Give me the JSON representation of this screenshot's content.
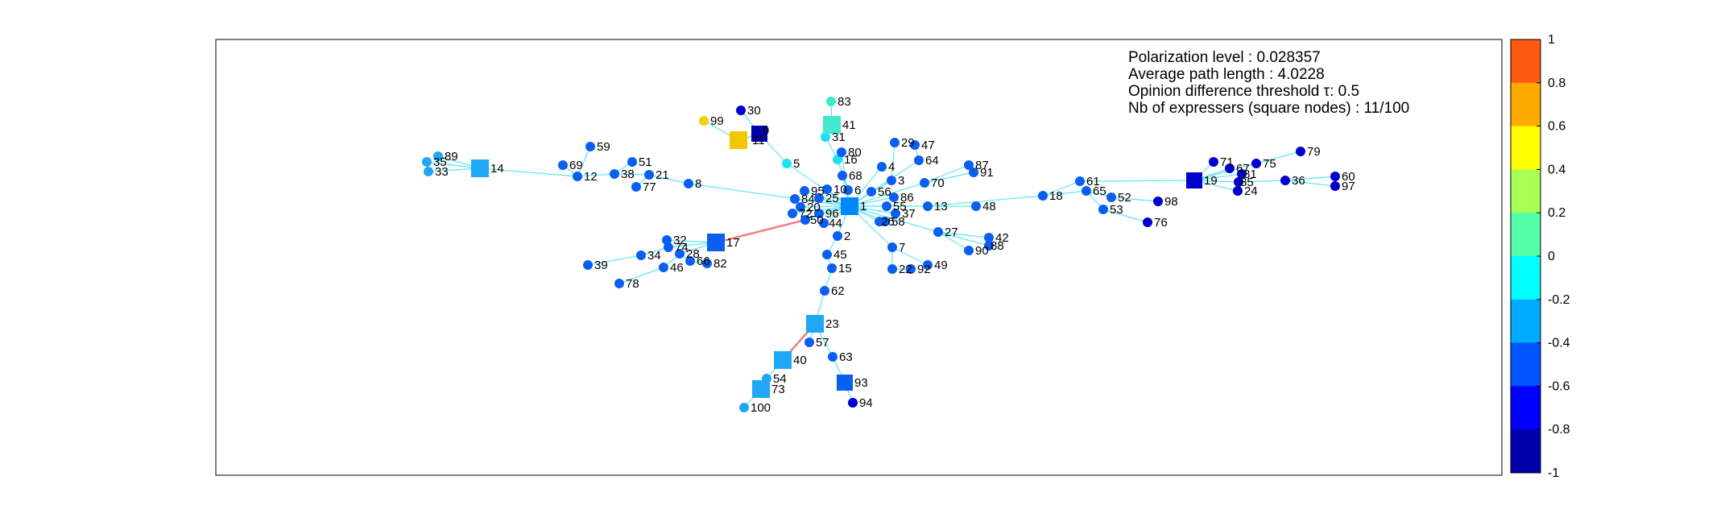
{
  "info": {
    "line1": "Polarization level : 0.028357",
    "line2": "Average path length : 4.0228",
    "line3": "Opinion difference threshold τ: 0.5",
    "line4": "Nb of expressers (square nodes) : 11/100"
  },
  "colorbar": {
    "ticks": [
      "1",
      "0.8",
      "0.6",
      "0.4",
      "0.2",
      "0",
      "-0.2",
      "-0.4",
      "-0.6",
      "-0.8",
      "-1"
    ],
    "bands": [
      "#FF5A14",
      "#FFAA00",
      "#FFFF00",
      "#AAFF55",
      "#55FFAA",
      "#00FFFF",
      "#00AAFF",
      "#0055FF",
      "#0000FF",
      "#0000AA"
    ]
  },
  "edge_colors": {
    "normal": "#5EE6F2",
    "disagreement": "#F08080"
  },
  "nodes": [
    {
      "id": "1",
      "label": "1"
    },
    {
      "id": "2",
      "label": "2"
    },
    {
      "id": "3",
      "label": "3"
    },
    {
      "id": "4",
      "label": "4"
    },
    {
      "id": "5",
      "label": "5"
    },
    {
      "id": "6",
      "label": "6"
    },
    {
      "id": "7",
      "label": "7"
    },
    {
      "id": "8",
      "label": "8"
    },
    {
      "id": "9",
      "label": "9"
    },
    {
      "id": "10",
      "label": "10"
    },
    {
      "id": "11",
      "label": "11"
    },
    {
      "id": "12",
      "label": "12"
    },
    {
      "id": "13",
      "label": "13"
    },
    {
      "id": "14",
      "label": "14"
    },
    {
      "id": "15",
      "label": "15"
    },
    {
      "id": "16",
      "label": "16"
    },
    {
      "id": "17",
      "label": "17"
    },
    {
      "id": "18",
      "label": "18"
    },
    {
      "id": "19",
      "label": "19"
    },
    {
      "id": "20",
      "label": "20"
    },
    {
      "id": "21",
      "label": "21"
    },
    {
      "id": "22",
      "label": "22"
    },
    {
      "id": "23",
      "label": "23"
    },
    {
      "id": "24",
      "label": "24"
    },
    {
      "id": "25",
      "label": "25"
    },
    {
      "id": "26",
      "label": "26"
    },
    {
      "id": "27",
      "label": "27"
    },
    {
      "id": "28",
      "label": "28"
    },
    {
      "id": "29",
      "label": "29"
    },
    {
      "id": "30",
      "label": "30"
    },
    {
      "id": "31",
      "label": "31"
    },
    {
      "id": "32",
      "label": "32"
    },
    {
      "id": "33",
      "label": "33"
    },
    {
      "id": "34",
      "label": "34"
    },
    {
      "id": "35",
      "label": "35"
    },
    {
      "id": "36",
      "label": "36"
    },
    {
      "id": "37",
      "label": "37"
    },
    {
      "id": "38",
      "label": "38"
    },
    {
      "id": "39",
      "label": "39"
    },
    {
      "id": "40",
      "label": "40"
    },
    {
      "id": "41",
      "label": "41"
    },
    {
      "id": "42",
      "label": "42"
    },
    {
      "id": "44",
      "label": "44"
    },
    {
      "id": "45",
      "label": "45"
    },
    {
      "id": "46",
      "label": "46"
    },
    {
      "id": "47",
      "label": "47"
    },
    {
      "id": "48",
      "label": "48"
    },
    {
      "id": "49",
      "label": "49"
    },
    {
      "id": "50",
      "label": "50"
    },
    {
      "id": "51",
      "label": "51"
    },
    {
      "id": "52",
      "label": "52"
    },
    {
      "id": "53",
      "label": "53"
    },
    {
      "id": "54",
      "label": "54"
    },
    {
      "id": "55",
      "label": "55"
    },
    {
      "id": "56",
      "label": "56"
    },
    {
      "id": "57",
      "label": "57"
    },
    {
      "id": "58",
      "label": "58"
    },
    {
      "id": "59",
      "label": "59"
    },
    {
      "id": "60",
      "label": "60"
    },
    {
      "id": "61",
      "label": "61"
    },
    {
      "id": "62",
      "label": "62"
    },
    {
      "id": "63",
      "label": "63"
    },
    {
      "id": "64",
      "label": "64"
    },
    {
      "id": "65",
      "label": "65"
    },
    {
      "id": "66",
      "label": "66"
    },
    {
      "id": "67",
      "label": "67"
    },
    {
      "id": "68",
      "label": "68"
    },
    {
      "id": "69",
      "label": "69"
    },
    {
      "id": "70",
      "label": "70"
    },
    {
      "id": "71",
      "label": "71"
    },
    {
      "id": "72",
      "label": "72"
    },
    {
      "id": "73",
      "label": "73"
    },
    {
      "id": "74",
      "label": "74"
    },
    {
      "id": "75",
      "label": "75"
    },
    {
      "id": "76",
      "label": "76"
    },
    {
      "id": "77",
      "label": "77"
    },
    {
      "id": "78",
      "label": "78"
    },
    {
      "id": "79",
      "label": "79"
    },
    {
      "id": "80",
      "label": "80"
    },
    {
      "id": "81",
      "label": "81"
    },
    {
      "id": "82",
      "label": "82"
    },
    {
      "id": "83",
      "label": "83"
    },
    {
      "id": "84",
      "label": "84"
    },
    {
      "id": "85",
      "label": "85"
    },
    {
      "id": "86",
      "label": "86"
    },
    {
      "id": "87",
      "label": "87"
    },
    {
      "id": "88",
      "label": "88"
    },
    {
      "id": "89",
      "label": "89"
    },
    {
      "id": "90",
      "label": "90"
    },
    {
      "id": "91",
      "label": "91"
    },
    {
      "id": "92",
      "label": "92"
    },
    {
      "id": "93",
      "label": "93"
    },
    {
      "id": "94",
      "label": "94"
    },
    {
      "id": "95",
      "label": "95"
    },
    {
      "id": "96",
      "label": "96"
    },
    {
      "id": "97",
      "label": "97"
    },
    {
      "id": "98",
      "label": "98"
    },
    {
      "id": "99",
      "label": "99"
    },
    {
      "id": "100",
      "label": "100"
    }
  ]
}
